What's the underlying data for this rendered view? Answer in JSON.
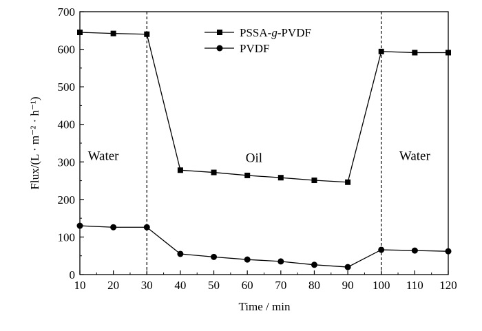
{
  "chart_data": {
    "type": "line",
    "x": [
      10,
      20,
      30,
      40,
      50,
      60,
      70,
      80,
      90,
      100,
      110,
      120
    ],
    "xlim": [
      10,
      120
    ],
    "ylim": [
      0,
      700
    ],
    "xticks": [
      "10",
      "20",
      "30",
      "40",
      "50",
      "60",
      "70",
      "80",
      "90",
      "100",
      "110",
      "120"
    ],
    "yticks": [
      "0",
      "100",
      "200",
      "300",
      "400",
      "500",
      "600",
      "700"
    ],
    "xticks_values": [
      10,
      20,
      30,
      40,
      50,
      60,
      70,
      80,
      90,
      100,
      110,
      120
    ],
    "yticks_values": [
      0,
      100,
      200,
      300,
      400,
      500,
      600,
      700
    ],
    "xlabel": "Time / min",
    "ylabel": "Flux/(L · m⁻² · h⁻¹)",
    "grid": false,
    "legend_position": "top-center",
    "series": [
      {
        "name": "PSSA-g-PVDF",
        "marker": "square",
        "x": [
          10,
          20,
          30,
          40,
          50,
          60,
          70,
          80,
          90,
          100,
          110,
          120
        ],
        "values": [
          645,
          642,
          640,
          278,
          272,
          264,
          258,
          251,
          246,
          594,
          591,
          591
        ]
      },
      {
        "name": "PVDF",
        "marker": "circle",
        "x": [
          10,
          20,
          30,
          40,
          50,
          60,
          70,
          80,
          90,
          100,
          110,
          120
        ],
        "values": [
          130,
          126,
          126,
          55,
          47,
          40,
          35,
          26,
          20,
          66,
          64,
          62
        ]
      }
    ],
    "vlines": [
      30,
      100
    ],
    "region_labels": [
      {
        "text": "Water",
        "x": 17,
        "y": 305
      },
      {
        "text": "Oil",
        "x": 62,
        "y": 300
      },
      {
        "text": "Water",
        "x": 110,
        "y": 305
      }
    ]
  },
  "legend": {
    "series1_prefix": "PSSA-",
    "series1_italic": "g",
    "series1_suffix": "-PVDF",
    "series2": "PVDF"
  },
  "colors": {
    "axis": "#000000",
    "line": "#000000",
    "marker": "#000000"
  }
}
